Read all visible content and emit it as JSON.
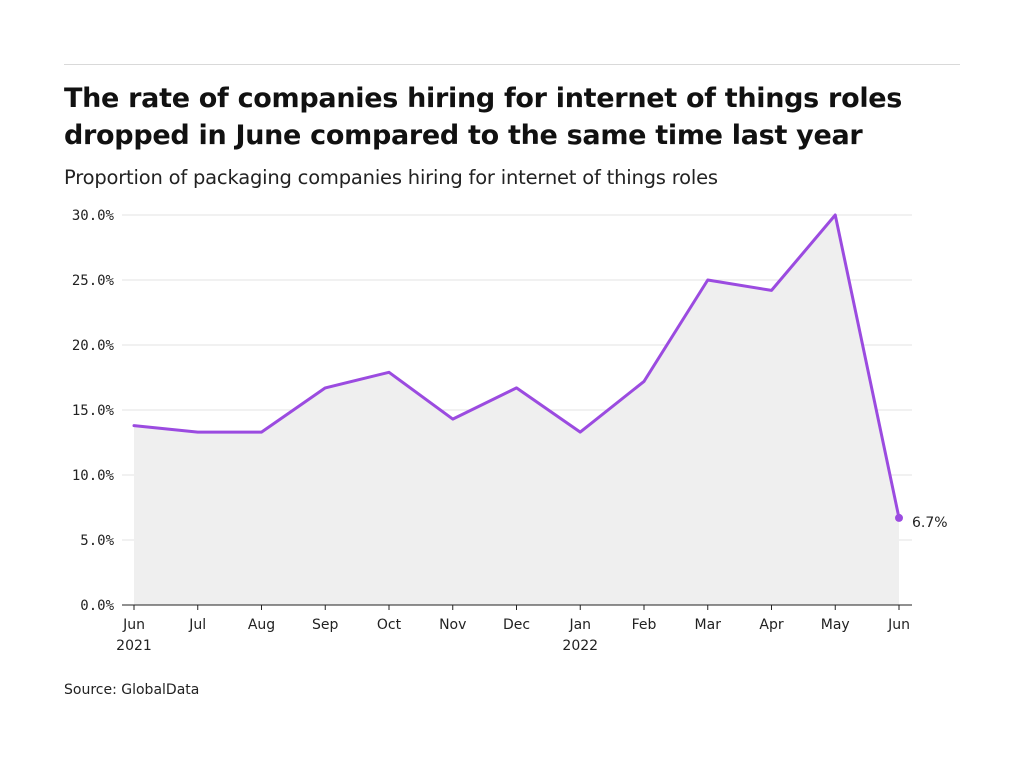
{
  "header": {
    "title_line1": "The rate of companies hiring for internet of things roles",
    "title_line2": "dropped in June compared to the same time last year",
    "subtitle": "Proportion of packaging companies hiring for internet of things roles"
  },
  "footer": {
    "source": "Source: GlobalData"
  },
  "chart_data": {
    "type": "area",
    "title": "The rate of companies hiring for internet of things roles dropped in June compared to the same time last year",
    "subtitle": "Proportion of packaging companies hiring for internet of things roles",
    "xlabel": "",
    "ylabel": "",
    "categories": [
      "Jun",
      "Jul",
      "Aug",
      "Sep",
      "Oct",
      "Nov",
      "Dec",
      "Jan",
      "Feb",
      "Mar",
      "Apr",
      "May",
      "Jun"
    ],
    "year_labels": {
      "0": "2021",
      "7": "2022"
    },
    "series": [
      {
        "values": [
          13.8,
          13.3,
          13.3,
          16.7,
          17.9,
          14.3,
          16.7,
          13.3,
          17.2,
          25.0,
          24.2,
          30.0,
          6.7
        ],
        "color": "#9b4be0"
      }
    ],
    "area_fill": "#efefef",
    "ylim": [
      0,
      30
    ],
    "yticks": [
      "0.0%",
      "5.0%",
      "10.0%",
      "15.0%",
      "20.0%",
      "25.0%",
      "30.0%"
    ],
    "grid": true,
    "end_label": "6.7%"
  }
}
